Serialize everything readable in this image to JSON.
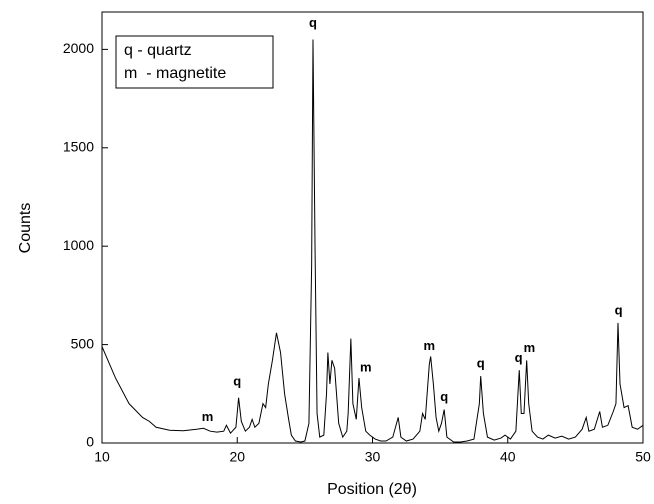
{
  "chart_data": {
    "type": "line",
    "x_label": "Position (2θ)",
    "y_label": "Counts",
    "legend_text": [
      "q - quartz",
      "m  - magnetite"
    ],
    "color": "#000000",
    "xlim": [
      10,
      50
    ],
    "ylim": [
      0,
      2190
    ],
    "xticks": [
      10,
      20,
      30,
      40,
      50
    ],
    "yticks": [
      0,
      500,
      1000,
      1500,
      2000
    ],
    "x": [
      10,
      11,
      12,
      13,
      13.5,
      14,
      15,
      16,
      17,
      17.5,
      18,
      18.5,
      19,
      19.2,
      19.5,
      19.9,
      20.1,
      20.3,
      20.6,
      20.9,
      21.1,
      21.3,
      21.6,
      21.9,
      22.1,
      22.3,
      22.6,
      22.9,
      23.2,
      23.5,
      23.8,
      24.0,
      24.3,
      24.7,
      25.0,
      25.3,
      25.5,
      25.6,
      25.75,
      25.9,
      26.1,
      26.4,
      26.6,
      26.7,
      26.85,
      27.0,
      27.2,
      27.5,
      27.8,
      28.1,
      28.2,
      28.4,
      28.55,
      28.8,
      29.0,
      29.2,
      29.5,
      29.8,
      30.2,
      30.6,
      31.0,
      31.5,
      31.9,
      32.1,
      32.5,
      33.0,
      33.5,
      33.7,
      33.9,
      34.2,
      34.3,
      34.5,
      34.7,
      34.9,
      35.1,
      35.3,
      35.5,
      36.0,
      36.5,
      37.0,
      37.5,
      37.9,
      38.0,
      38.2,
      38.5,
      39.0,
      39.5,
      39.8,
      40.2,
      40.6,
      40.85,
      41.0,
      41.2,
      41.4,
      41.55,
      41.8,
      42.2,
      42.6,
      43.0,
      43.5,
      44.0,
      44.5,
      45.0,
      45.5,
      45.8,
      46.0,
      46.4,
      46.8,
      47.0,
      47.4,
      47.8,
      48.0,
      48.15,
      48.3,
      48.6,
      48.9,
      49.2,
      49.6,
      50
    ],
    "values": [
      490,
      330,
      200,
      130,
      110,
      80,
      65,
      62,
      70,
      75,
      60,
      55,
      60,
      90,
      50,
      80,
      230,
      110,
      60,
      80,
      120,
      80,
      100,
      200,
      180,
      300,
      420,
      560,
      460,
      250,
      120,
      40,
      10,
      5,
      10,
      100,
      900,
      2050,
      1000,
      150,
      30,
      40,
      250,
      460,
      300,
      420,
      380,
      100,
      30,
      60,
      150,
      530,
      200,
      120,
      330,
      180,
      60,
      40,
      20,
      10,
      10,
      30,
      130,
      30,
      10,
      20,
      60,
      150,
      120,
      400,
      440,
      300,
      130,
      60,
      100,
      170,
      30,
      5,
      5,
      10,
      20,
      200,
      340,
      150,
      30,
      15,
      25,
      40,
      20,
      60,
      370,
      150,
      150,
      420,
      200,
      60,
      30,
      20,
      40,
      25,
      35,
      20,
      30,
      70,
      130,
      60,
      70,
      160,
      80,
      90,
      160,
      200,
      610,
      300,
      180,
      190,
      80,
      70,
      90
    ],
    "annotations": [
      {
        "text": "m",
        "x": 17.8,
        "y": 130
      },
      {
        "text": "q",
        "x": 20.0,
        "y": 310
      },
      {
        "text": "q",
        "x": 25.6,
        "y": 2130
      },
      {
        "text": "m",
        "x": 29.5,
        "y": 380
      },
      {
        "text": "m",
        "x": 34.2,
        "y": 490
      },
      {
        "text": "q",
        "x": 35.3,
        "y": 230
      },
      {
        "text": "q",
        "x": 38.0,
        "y": 400
      },
      {
        "text": "q",
        "x": 40.8,
        "y": 430
      },
      {
        "text": "m",
        "x": 41.6,
        "y": 480
      },
      {
        "text": "q",
        "x": 48.2,
        "y": 670
      }
    ]
  }
}
